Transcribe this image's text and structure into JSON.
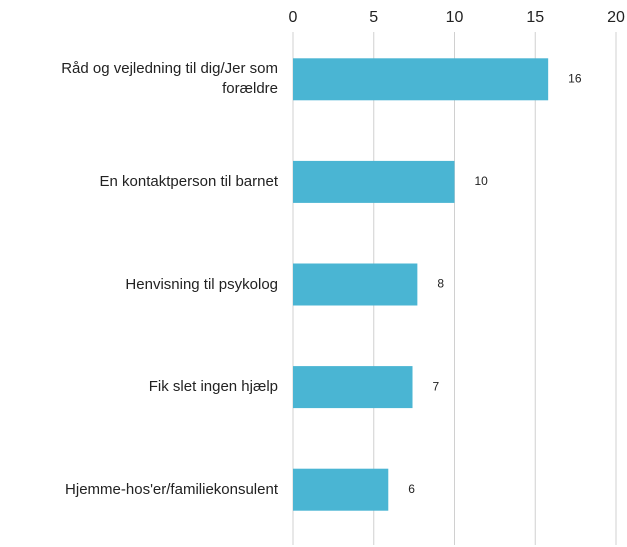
{
  "chart_data": {
    "type": "bar",
    "orientation": "horizontal",
    "categories": [
      "Råd og vejledning til dig/Jer som forældre",
      "En kontaktperson til barnet",
      "Henvisning til psykolog",
      "Fik slet ingen hjælp",
      "Hjemme-hos'er/familiekonsulent"
    ],
    "values": [
      15.8,
      10,
      7.7,
      7.4,
      5.9
    ],
    "value_labels": [
      "16",
      "10",
      "8",
      "7",
      "6"
    ],
    "color": "#4ab5d3",
    "xlim": [
      0,
      20
    ],
    "xticks": [
      0,
      5,
      10,
      15,
      20
    ],
    "grid": true
  }
}
